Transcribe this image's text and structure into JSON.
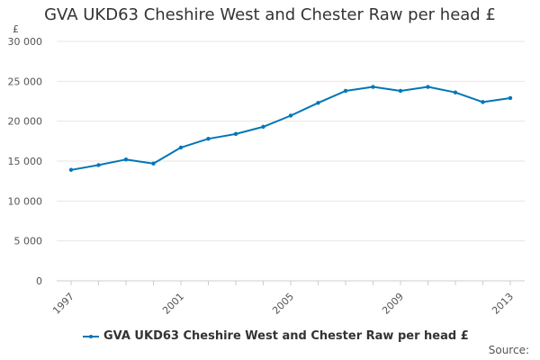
{
  "header": {
    "title": "GVA UKD63 Cheshire West and Chester Raw per head £"
  },
  "colors": {
    "series": "#0077b6",
    "grid": "#e6e6e6",
    "axis_text": "#555555"
  },
  "chart_data": {
    "type": "line",
    "title": "GVA UKD63 Cheshire West and Chester Raw per head £",
    "ylabel": "£",
    "xlabel": "",
    "ylim": [
      0,
      30000
    ],
    "yticks": [
      0,
      5000,
      10000,
      15000,
      20000,
      25000,
      30000
    ],
    "ytick_labels": [
      "0",
      "5 000",
      "10 000",
      "15 000",
      "20 000",
      "25 000",
      "30 000"
    ],
    "xticks": [
      1997,
      2001,
      2005,
      2009,
      2013
    ],
    "xtick_labels": [
      "1997",
      "2001",
      "2005",
      "2009",
      "2013"
    ],
    "xlim": [
      1997,
      2013
    ],
    "grid": true,
    "legend_position": "bottom-left",
    "series": [
      {
        "name": "GVA UKD63 Cheshire West and Chester Raw per head £",
        "x": [
          1997,
          1998,
          1999,
          2000,
          2001,
          2002,
          2003,
          2004,
          2005,
          2006,
          2007,
          2008,
          2009,
          2010,
          2011,
          2012,
          2013
        ],
        "values": [
          13900,
          14500,
          15200,
          14700,
          16700,
          17800,
          18400,
          19300,
          20700,
          22300,
          23800,
          24300,
          23800,
          24300,
          23600,
          22400,
          22900
        ]
      }
    ]
  },
  "legend": {
    "label": "GVA UKD63 Cheshire West and Chester Raw per head £"
  },
  "footer": {
    "source_label": "Source:"
  }
}
